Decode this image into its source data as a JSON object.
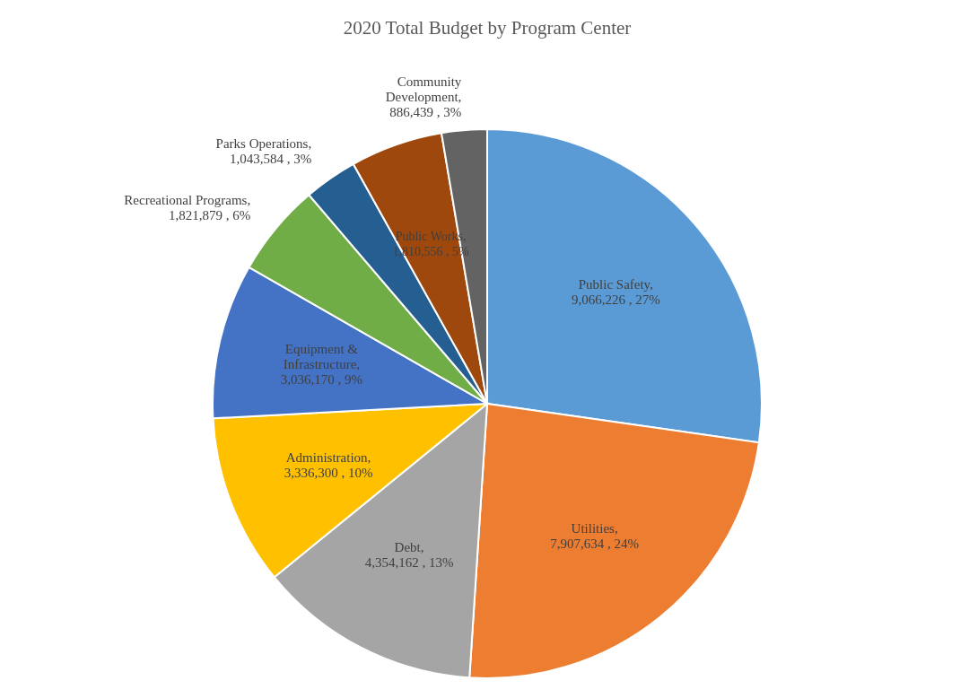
{
  "chart_data": {
    "type": "pie",
    "title": "2020 Total Budget by Program Center",
    "categories": [
      "Public Safety",
      "Utilities",
      "Debt",
      "Administration",
      "Equipment & Infrastructure",
      "Recreational Programs",
      "Parks Operations",
      "Public Works",
      "Community Development"
    ],
    "values": [
      9066226,
      7907634,
      4354162,
      3336300,
      3036170,
      1821879,
      1043584,
      1810556,
      886439
    ],
    "colors": [
      "#5b9bd5",
      "#ed7d31",
      "#a5a5a5",
      "#ffc000",
      "#4472c4",
      "#70ad47",
      "#255e91",
      "#9e480e",
      "#636363"
    ],
    "value_labels": [
      ", 9,066,226 , 27%",
      ", 7,907,634 , 24%",
      ", 4,354,162 , 13%",
      ", 3,336,300 , 10%",
      ", 3,036,170 , 9%",
      ", 1,821,879 , 6%",
      ", 1,043,584 , 3%",
      ", 1,810,556 , 5%",
      ", 886,439 , 3%"
    ],
    "legend": false
  }
}
